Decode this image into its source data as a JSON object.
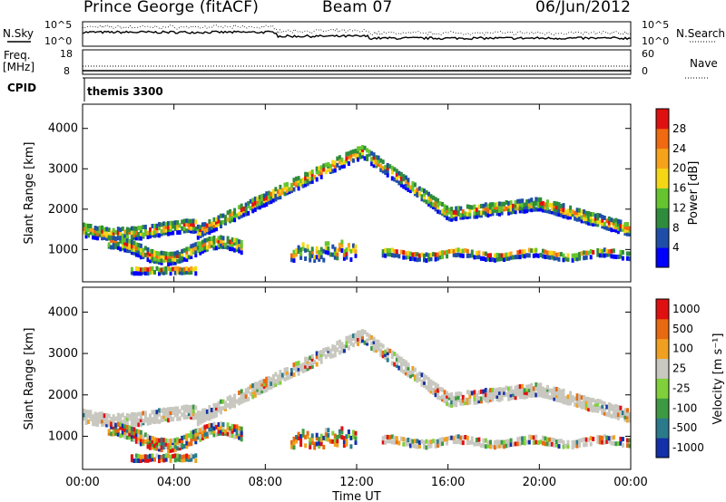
{
  "header": {
    "station": "Prince George (fitACF)",
    "beam": "Beam 07",
    "date": "06/Jun/2012"
  },
  "top_panels": {
    "nsky_label": "N.Sky",
    "nsearch_label": "N.Search",
    "freq_label_1": "Freq.",
    "freq_label_2": "[MHz]",
    "nave_label": "Nave",
    "cpid_label": "CPID",
    "cpid_value": "themis 3300",
    "nsky_ticks": [
      "10^5",
      "10^0"
    ],
    "nsearch_ticks": [
      "10^5",
      "10^0"
    ],
    "freq_ticks": [
      "18",
      "8"
    ],
    "nave_ticks": [
      "60",
      "0"
    ]
  },
  "colors": {
    "power_scale": [
      "#0000ff",
      "#1f4ea8",
      "#2f8c3c",
      "#66c52e",
      "#f5d716",
      "#f7a31a",
      "#ef6a10",
      "#e01010"
    ],
    "velocity_scale": [
      "#1230a8",
      "#2a7a8c",
      "#3e9a42",
      "#7fd03a",
      "#c8c8c0",
      "#f0a020",
      "#e86a10",
      "#e01010"
    ],
    "ground_scatter": "#c8c8c0"
  },
  "chart_data": [
    {
      "type": "heatmap",
      "name": "power",
      "ylabel": "Slant Range [km]",
      "xlabel": "Time UT",
      "x_ticks": [
        "00:00",
        "04:00",
        "08:00",
        "12:00",
        "16:00",
        "20:00",
        "00:00"
      ],
      "y_ticks": [
        "1000",
        "2000",
        "3000",
        "4000"
      ],
      "ylim": [
        200,
        4600
      ],
      "colorbar_label": "Power [dB]",
      "colorbar_ticks": [
        "4",
        "8",
        "12",
        "16",
        "20",
        "24",
        "28"
      ],
      "colorbar_range": [
        0,
        30
      ]
    },
    {
      "type": "heatmap",
      "name": "velocity",
      "ylabel": "Slant Range [km]",
      "xlabel": "Time UT",
      "x_ticks": [
        "00:00",
        "04:00",
        "08:00",
        "12:00",
        "16:00",
        "20:00",
        "00:00"
      ],
      "y_ticks": [
        "1000",
        "2000",
        "3000",
        "4000"
      ],
      "ylim": [
        200,
        4600
      ],
      "colorbar_label": "Velocity [m s⁻¹]",
      "colorbar_ticks": [
        "1000",
        "500",
        "100",
        "25",
        "-25",
        "-100",
        "-500",
        "-1000"
      ]
    }
  ],
  "x_axis_title": "Time UT"
}
